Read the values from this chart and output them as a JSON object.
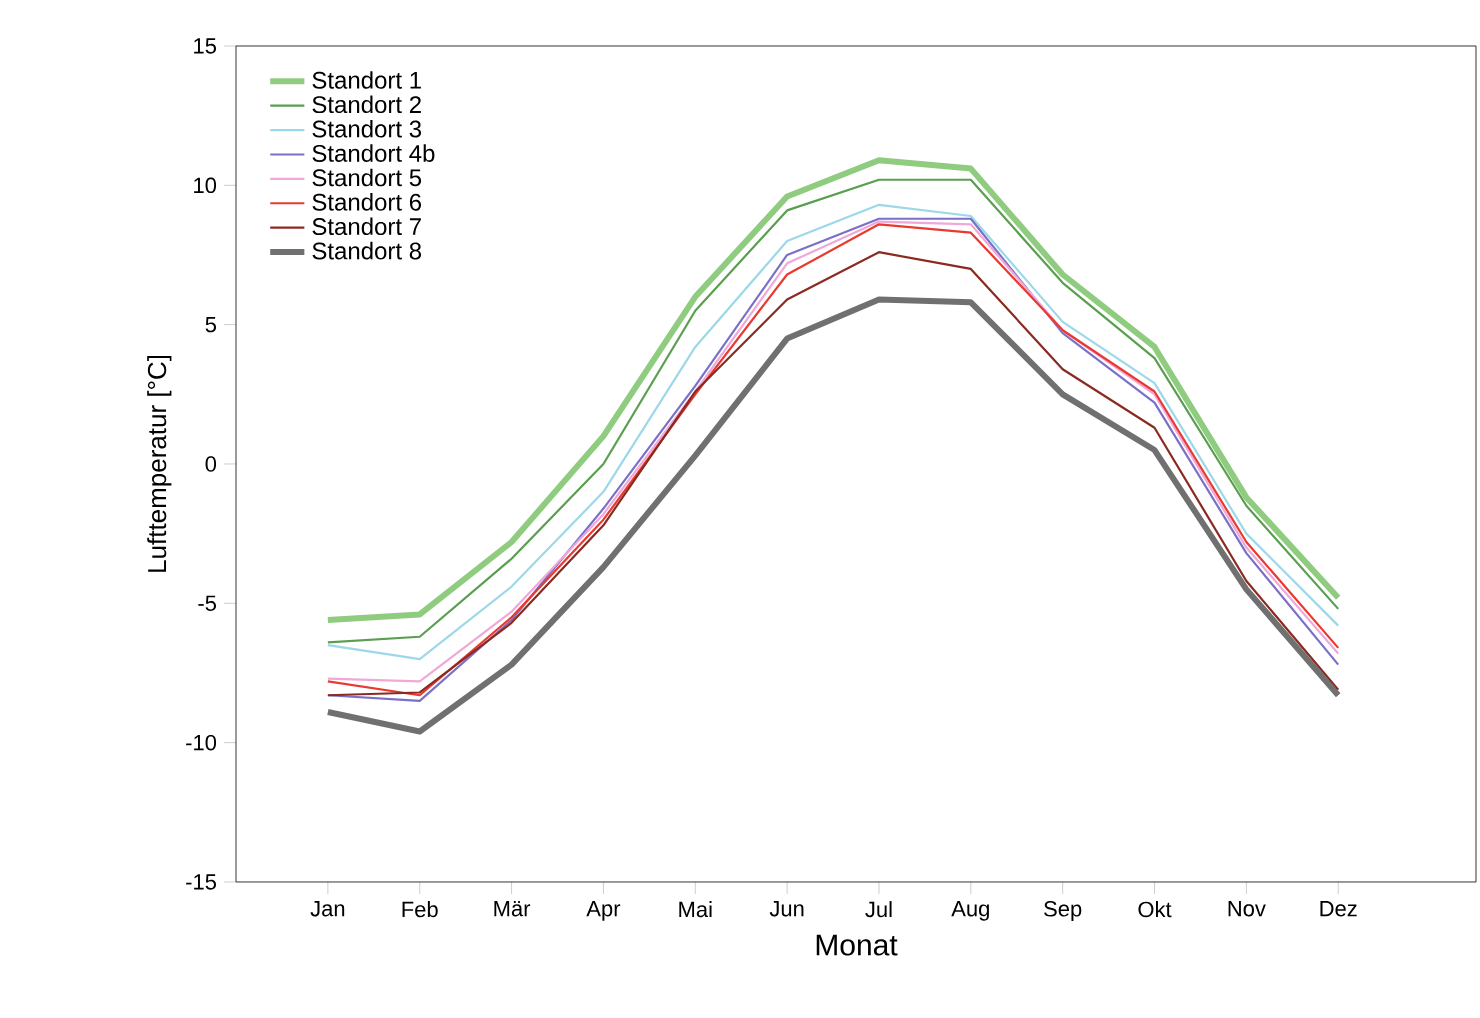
{
  "chart_data": {
    "type": "line",
    "xlabel": "Monat",
    "ylabel": "Lufttemperatur [°C]",
    "categories": [
      "Jan",
      "Feb",
      "Mär",
      "Apr",
      "Mai",
      "Jun",
      "Jul",
      "Aug",
      "Sep",
      "Okt",
      "Nov",
      "Dez"
    ],
    "series": [
      {
        "name": "Standort 1",
        "color": "#8fcc80",
        "values": [
          -5.6,
          -5.4,
          -2.8,
          1.0,
          6.0,
          9.6,
          10.9,
          10.6,
          6.8,
          4.2,
          -1.2,
          -4.8
        ]
      },
      {
        "name": "Standort 2",
        "color": "#5a9e50",
        "values": [
          -6.4,
          -6.2,
          -3.4,
          0.0,
          5.5,
          9.1,
          10.2,
          10.2,
          6.5,
          3.8,
          -1.5,
          -5.2
        ]
      },
      {
        "name": "Standort 3",
        "color": "#9dd8e8",
        "values": [
          -6.5,
          -7.0,
          -4.4,
          -1.0,
          4.2,
          8.0,
          9.3,
          8.9,
          5.1,
          2.9,
          -2.5,
          -5.8
        ]
      },
      {
        "name": "Standort 4b",
        "color": "#7a70c8",
        "values": [
          -8.3,
          -8.5,
          -5.6,
          -1.6,
          2.8,
          7.5,
          8.8,
          8.8,
          4.7,
          2.2,
          -3.2,
          -7.2
        ]
      },
      {
        "name": "Standort 5",
        "color": "#f0a8d8",
        "values": [
          -7.7,
          -7.8,
          -5.3,
          -1.8,
          2.6,
          7.2,
          8.7,
          8.6,
          4.8,
          2.5,
          -3.0,
          -6.8
        ]
      },
      {
        "name": "Standort 6",
        "color": "#e83a30",
        "values": [
          -7.8,
          -8.3,
          -5.5,
          -2.0,
          2.5,
          6.8,
          8.6,
          8.3,
          4.8,
          2.6,
          -2.8,
          -6.6
        ]
      },
      {
        "name": "Standort 7",
        "color": "#8b2a20",
        "values": [
          -8.3,
          -8.2,
          -5.7,
          -2.2,
          2.6,
          5.9,
          7.6,
          7.0,
          3.4,
          1.3,
          -4.2,
          -8.1
        ]
      },
      {
        "name": "Standort 8",
        "color": "#707070",
        "values": [
          -8.9,
          -9.6,
          -7.2,
          -3.7,
          0.3,
          4.5,
          5.9,
          5.8,
          2.5,
          0.5,
          -4.5,
          -8.3
        ]
      }
    ],
    "ylim": [
      -15,
      15
    ],
    "yticks": [
      -15,
      -10,
      -5,
      0,
      5,
      10,
      15
    ],
    "grid": false,
    "legend": "top left",
    "marker": "none",
    "line_style": "solid"
  }
}
